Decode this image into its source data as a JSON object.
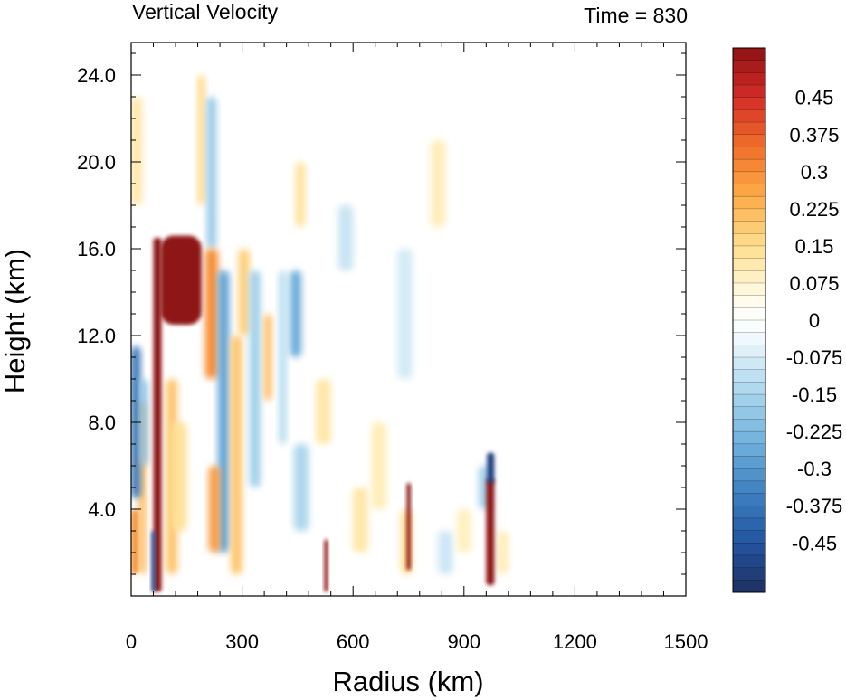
{
  "chart_data": {
    "type": "heatmap",
    "title": "Vertical Velocity",
    "subtitle": "Time = 830",
    "xlabel": "Radius (km)",
    "ylabel": "Height (km)",
    "xlim": [
      0,
      1500
    ],
    "ylim": [
      0,
      25.5
    ],
    "xticks": [
      0,
      300,
      600,
      900,
      1200,
      1500
    ],
    "xtick_labels": [
      "0",
      "300",
      "600",
      "900",
      "1200",
      "1500"
    ],
    "yticks": [
      4,
      8,
      12,
      16,
      20,
      24
    ],
    "ytick_labels": [
      "4.0",
      "8.0",
      "12.0",
      "16.0",
      "20.0",
      "24.0"
    ],
    "colorbar": {
      "min": -0.55,
      "max": 0.55,
      "step": 0.025,
      "labels": [
        "0.45",
        "0.375",
        "0.3",
        "0.225",
        "0.15",
        "0.075",
        "0",
        "-0.075",
        "-0.15",
        "-0.225",
        "-0.3",
        "-0.375",
        "-0.45"
      ],
      "label_values": [
        0.45,
        0.375,
        0.3,
        0.225,
        0.15,
        0.075,
        0,
        -0.075,
        -0.15,
        -0.225,
        -0.3,
        -0.375,
        -0.45
      ]
    },
    "features": [
      {
        "name": "eyewall updraft",
        "x": [
          60,
          80
        ],
        "y": [
          0.2,
          16.5
        ],
        "value": 0.55
      },
      {
        "name": "outflow maximum",
        "x": [
          80,
          190
        ],
        "y": [
          12.5,
          16.6
        ],
        "value": 0.55
      },
      {
        "name": "inner downdraft",
        "x": [
          0,
          25
        ],
        "y": [
          4.5,
          11.5
        ],
        "value": -0.4
      },
      {
        "name": "narrow updraft",
        "x": [
          522,
          532
        ],
        "y": [
          0.2,
          2.6
        ],
        "value": 0.55
      },
      {
        "name": "narrow updraft",
        "x": [
          745,
          755
        ],
        "y": [
          1.2,
          5.2
        ],
        "value": 0.55
      },
      {
        "name": "narrow updraft",
        "x": [
          960,
          980
        ],
        "y": [
          0.5,
          5.5
        ],
        "value": 0.55
      },
      {
        "name": "narrow downdraft",
        "x": [
          962,
          982
        ],
        "y": [
          5.2,
          6.6
        ],
        "value": -0.5
      }
    ]
  }
}
